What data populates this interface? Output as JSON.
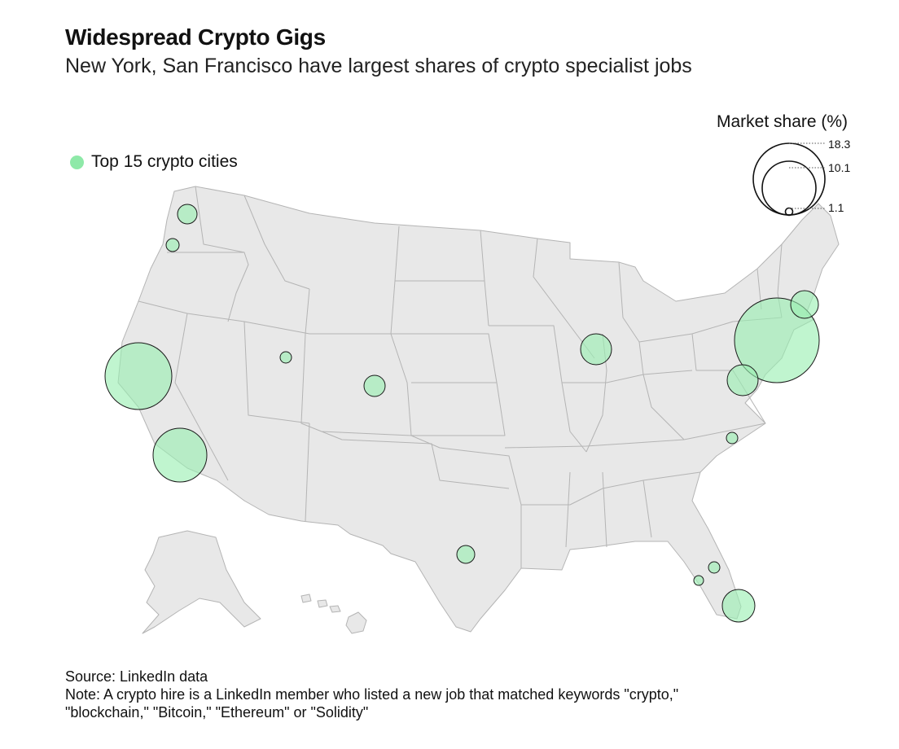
{
  "title": "Widespread Crypto Gigs",
  "subtitle": "New York, San Francisco have largest shares of crypto specialist jobs",
  "legend": {
    "label": "Top 15 crypto cities",
    "color": "#8ee9a8"
  },
  "size_legend": {
    "title": "Market share (%)",
    "values": [
      "18.3",
      "10.1",
      "1.1"
    ]
  },
  "colors": {
    "land": "#e8e8e8",
    "borders": "#b4b4b4",
    "bubble": "#9aefb2"
  },
  "footer": {
    "source": "Source: LinkedIn data",
    "note_line1": "Note: A crypto hire is a LinkedIn member who listed a new job that matched keywords \"crypto,\"",
    "note_line2": "\"blockchain,\" \"Bitcoin,\" \"Ethereum\" or \"Solidity\""
  },
  "chart_data": {
    "type": "bubble-map",
    "size_variable": "Market share (%)",
    "size_reference_values": [
      18.3,
      10.1,
      1.1
    ],
    "points": [
      {
        "approx_location": "New York",
        "share": 18.3
      },
      {
        "approx_location": "San Francisco",
        "share": 11.0
      },
      {
        "approx_location": "Los Angeles",
        "share": 7.0
      },
      {
        "approx_location": "Washington DC",
        "share": 2.4
      },
      {
        "approx_location": "Chicago",
        "share": 2.4
      },
      {
        "approx_location": "Boston",
        "share": 1.9
      },
      {
        "approx_location": "Miami",
        "share": 2.4
      },
      {
        "approx_location": "Seattle",
        "share": 0.9
      },
      {
        "approx_location": "Denver",
        "share": 0.9
      },
      {
        "approx_location": "Austin",
        "share": 0.6
      },
      {
        "approx_location": "Portland",
        "share": 0.4
      },
      {
        "approx_location": "Salt Lake City",
        "share": 0.3
      },
      {
        "approx_location": "Charlotte/Raleigh",
        "share": 0.3
      },
      {
        "approx_location": "Orlando",
        "share": 0.3
      },
      {
        "approx_location": "Tampa",
        "share": 0.2
      }
    ]
  }
}
